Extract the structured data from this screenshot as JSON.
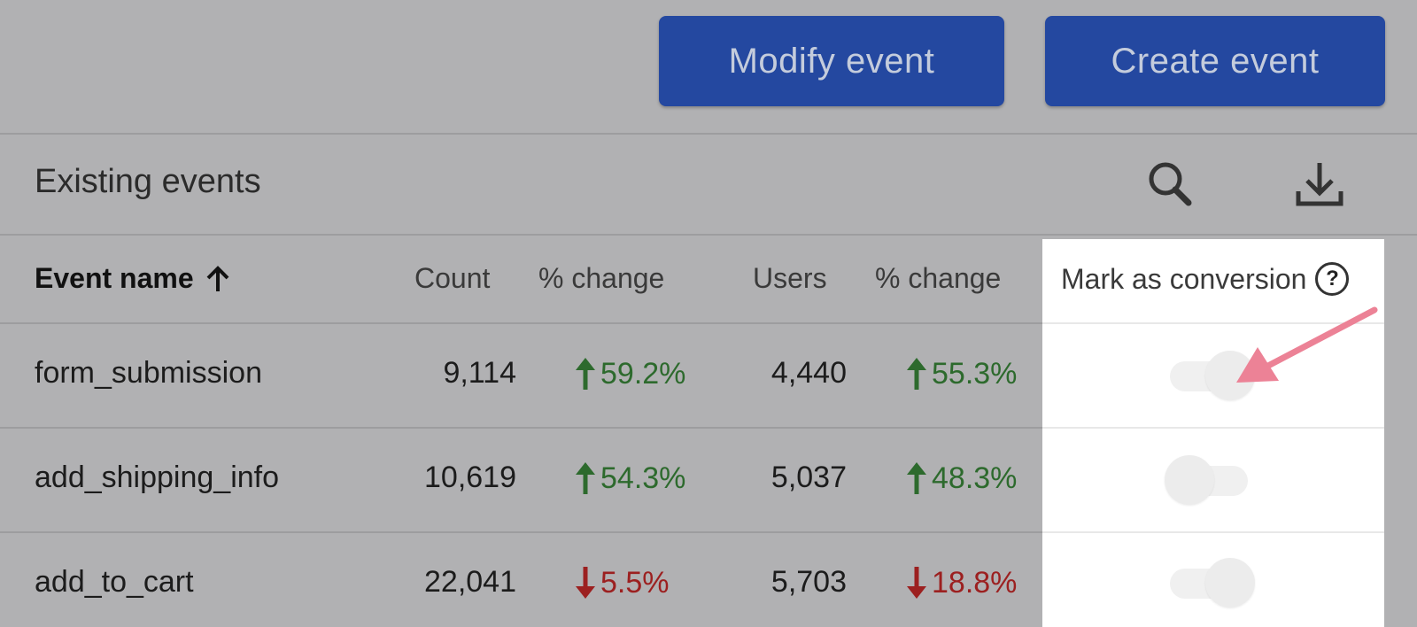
{
  "toolbar": {
    "modify_label": "Modify event",
    "create_label": "Create event"
  },
  "card": {
    "title": "Existing events"
  },
  "table": {
    "headers": {
      "name": "Event name",
      "count": "Count",
      "count_change": "% change",
      "users": "Users",
      "users_change": "% change",
      "conversion": "Mark as conversion"
    },
    "rows": [
      {
        "name": "form_submission",
        "count": "9,114",
        "count_change": "59.2%",
        "count_trend": "up",
        "users": "4,440",
        "users_change": "55.3%",
        "users_trend": "up",
        "conversion": false
      },
      {
        "name": "add_shipping_info",
        "count": "10,619",
        "count_change": "54.3%",
        "count_trend": "up",
        "users": "5,037",
        "users_change": "48.3%",
        "users_trend": "up",
        "conversion": false
      },
      {
        "name": "add_to_cart",
        "count": "22,041",
        "count_change": "5.5%",
        "count_trend": "down",
        "users": "5,703",
        "users_change": "18.8%",
        "users_trend": "down",
        "conversion": false
      }
    ]
  },
  "colors": {
    "button_bg": "#2448a0",
    "trend_up": "#2d6a2d",
    "trend_down": "#9c2020",
    "annotation_arrow": "#ec8296"
  },
  "icons": {
    "search": "search-icon",
    "download": "download-icon",
    "sort": "arrow-up-icon",
    "help": "help-icon"
  }
}
